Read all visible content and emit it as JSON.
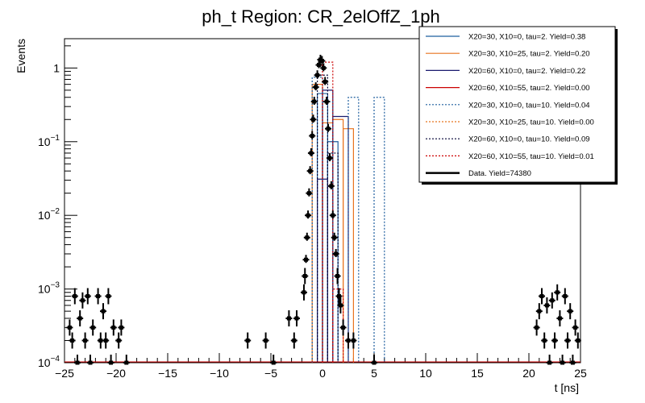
{
  "chart_data": {
    "type": "histogram",
    "title": "ph_t Region: CR_2elOffZ_1ph",
    "xlabel": "t [ns]",
    "ylabel": "Events",
    "xlim": [
      -25,
      25
    ],
    "ylim": [
      0.0001,
      2.5
    ],
    "yscale": "log",
    "x_ticks": [
      -25,
      -20,
      -15,
      -10,
      -5,
      0,
      5,
      10,
      15,
      20,
      25
    ],
    "x_tick_labels": [
      "−25",
      "−20",
      "−15",
      "−10",
      "−5",
      "0",
      "5",
      "10",
      "15",
      "20",
      "25"
    ],
    "y_ticks": [
      {
        "value": 0.0001,
        "base": "10",
        "exp": "−4"
      },
      {
        "value": 0.001,
        "base": "10",
        "exp": "−3"
      },
      {
        "value": 0.01,
        "base": "10",
        "exp": "−2"
      },
      {
        "value": 0.1,
        "base": "10",
        "exp": "−1"
      },
      {
        "value": 1,
        "base": "1",
        "exp": ""
      }
    ],
    "legend_position": "top-right",
    "series": [
      {
        "name": "X20=30, X10=0, tau=2. Yield=0.38",
        "color": "#1f5f9f",
        "dashed": false,
        "bins": [
          [
            -0.5,
            0.5,
            0.45
          ],
          [
            0.5,
            1.5,
            0.1
          ]
        ]
      },
      {
        "name": "X20=30, X10=25, tau=2. Yield=0.20",
        "color": "#e8731f",
        "dashed": false,
        "bins": [
          [
            -1.0,
            0.0,
            0.6
          ],
          [
            0.0,
            1.0,
            0.18
          ],
          [
            1.0,
            2.0,
            0.2
          ],
          [
            2.0,
            3.0,
            0.15
          ]
        ]
      },
      {
        "name": "X20=60, X10=0, tau=2. Yield=0.22",
        "color": "#1a1a6e",
        "dashed": false,
        "bins": [
          [
            -0.5,
            0.5,
            0.031
          ],
          [
            0.0,
            1.0,
            0.5
          ],
          [
            1.0,
            2.5,
            0.22
          ]
        ]
      },
      {
        "name": "X20=60, X10=55, tau=2. Yield=0.00",
        "color": "#cc0000",
        "dashed": false,
        "bins": []
      },
      {
        "name": "X20=30, X10=0, tau=10. Yield=0.04",
        "color": "#1f5f9f",
        "dashed": true,
        "bins": [
          [
            -1.0,
            0.0,
            0.75
          ],
          [
            0.0,
            1.0,
            0.35
          ],
          [
            2.5,
            3.5,
            0.4
          ],
          [
            5.0,
            6.0,
            0.4
          ]
        ]
      },
      {
        "name": "X20=30, X10=25, tau=10. Yield=0.00",
        "color": "#e8731f",
        "dashed": true,
        "bins": []
      },
      {
        "name": "X20=60, X10=0, tau=10. Yield=0.09",
        "color": "#000033",
        "dashed": true,
        "bins": [
          [
            -0.5,
            0.5,
            0.8
          ],
          [
            0.5,
            1.5,
            0.07
          ]
        ]
      },
      {
        "name": "X20=60, X10=55, tau=10. Yield=0.01",
        "color": "#cc0000",
        "dashed": true,
        "bins": [
          [
            0.0,
            1.0,
            1.2
          ],
          [
            1.0,
            2.0,
            0.001
          ]
        ]
      },
      {
        "name": "Data. Yield=74380",
        "color": "#000000",
        "dashed": false,
        "is_data": true,
        "points": [
          [
            -24.5,
            0.0003
          ],
          [
            -24.25,
            0.0002
          ],
          [
            -24.0,
            0.0008
          ],
          [
            -23.75,
            0.0001
          ],
          [
            -23.5,
            0.0004
          ],
          [
            -23.25,
            0.0007
          ],
          [
            -23.0,
            0.0002
          ],
          [
            -22.75,
            0.0008
          ],
          [
            -22.5,
            0.0001
          ],
          [
            -22.25,
            0.0003
          ],
          [
            -21.75,
            0.0008
          ],
          [
            -21.5,
            0.0002
          ],
          [
            -21.25,
            0.0005
          ],
          [
            -21.0,
            0.0002
          ],
          [
            -20.75,
            0.0008
          ],
          [
            -20.5,
            0.0001
          ],
          [
            -20.25,
            0.0003
          ],
          [
            -19.75,
            0.0002
          ],
          [
            -19.5,
            0.0003
          ],
          [
            -19.0,
            0.0001
          ],
          [
            -7.25,
            0.0002
          ],
          [
            -5.5,
            0.0002
          ],
          [
            -4.75,
            0.0001
          ],
          [
            -3.25,
            0.0004
          ],
          [
            -2.75,
            0.0002
          ],
          [
            -2.5,
            0.0004
          ],
          [
            -1.8,
            0.0009
          ],
          [
            -1.7,
            0.0015
          ],
          [
            -1.6,
            0.0025
          ],
          [
            -1.5,
            0.005
          ],
          [
            -1.4,
            0.01
          ],
          [
            -1.3,
            0.02
          ],
          [
            -1.2,
            0.04
          ],
          [
            -1.1,
            0.07
          ],
          [
            -1.0,
            0.12
          ],
          [
            -0.9,
            0.2
          ],
          [
            -0.8,
            0.35
          ],
          [
            -0.65,
            0.55
          ],
          [
            -0.5,
            0.8
          ],
          [
            -0.35,
            1.1
          ],
          [
            -0.2,
            1.3
          ],
          [
            -0.05,
            1.25
          ],
          [
            0.1,
            1.0
          ],
          [
            0.25,
            0.65
          ],
          [
            0.4,
            0.35
          ],
          [
            0.55,
            0.15
          ],
          [
            0.7,
            0.06
          ],
          [
            0.85,
            0.025
          ],
          [
            1.0,
            0.01
          ],
          [
            1.15,
            0.005
          ],
          [
            1.3,
            0.003
          ],
          [
            1.45,
            0.0015
          ],
          [
            1.6,
            0.0008
          ],
          [
            1.75,
            0.0006
          ],
          [
            2.0,
            0.0003
          ],
          [
            2.5,
            0.0002
          ],
          [
            3.0,
            0.0002
          ],
          [
            5.0,
            0.0001
          ],
          [
            20.75,
            0.0003
          ],
          [
            21.0,
            0.0005
          ],
          [
            21.25,
            0.0008
          ],
          [
            21.5,
            0.0002
          ],
          [
            21.75,
            0.0006
          ],
          [
            22.0,
            0.0001
          ],
          [
            22.25,
            0.0007
          ],
          [
            22.5,
            0.0002
          ],
          [
            22.75,
            0.0009
          ],
          [
            23.0,
            0.0004
          ],
          [
            23.25,
            0.0001
          ],
          [
            23.5,
            0.0008
          ],
          [
            23.75,
            0.0002
          ],
          [
            24.0,
            0.0005
          ],
          [
            24.25,
            0.0001
          ],
          [
            24.5,
            0.0003
          ],
          [
            24.75,
            0.0002
          ]
        ]
      }
    ]
  }
}
